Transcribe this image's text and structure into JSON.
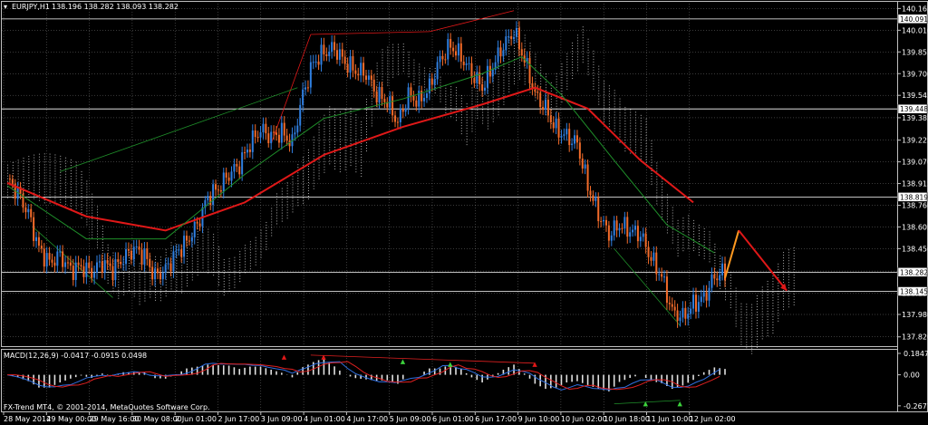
{
  "header": {
    "symbol": "EURJPY,H1",
    "ohlc": "138.196 138.282 138.093 138.282"
  },
  "colors": {
    "background": "#000000",
    "grid": "#c0c0c0",
    "bull": "#2f7fe0",
    "bear": "#f26b2a",
    "ma_red": "#e01818",
    "ma_green": "#1f8f2a",
    "cloud_white": "#d8d8d8",
    "cloud_orange": "#e8b090",
    "macd_blue": "#2f6fe0",
    "macd_red": "#e02020",
    "hist": "#e0e0e0"
  },
  "chart_data": {
    "type": "candlestick",
    "symbol": "EURJPY",
    "timeframe": "H1",
    "ylim": [
      137.76,
      140.2
    ],
    "y_ticks": [
      "140.165",
      "140.010",
      "139.855",
      "139.700",
      "139.545",
      "139.385",
      "139.225",
      "139.070",
      "138.915",
      "138.760",
      "138.605",
      "138.450",
      "138.290",
      "138.130",
      "137.980",
      "137.820"
    ],
    "x_ticks": [
      "28 May 2014",
      "29 May 00:00",
      "29 May 16:00",
      "30 May 08:00",
      "2 Jun 01:00",
      "2 Jun 17:00",
      "3 Jun 09:00",
      "4 Jun 01:00",
      "4 Jun 17:00",
      "5 Jun 09:00",
      "6 Jun 01:00",
      "6 Jun 17:00",
      "9 Jun 10:00",
      "10 Jun 02:00",
      "10 Jun 18:00",
      "11 Jun 10:00",
      "12 Jun 02:00"
    ],
    "price_boxes": [
      {
        "label": "140.091",
        "value": 140.091
      },
      {
        "label": "139.448",
        "value": 139.448
      },
      {
        "label": "138.819",
        "value": 138.819
      },
      {
        "label": "138.282",
        "value": 138.282
      },
      {
        "label": "138.145",
        "value": 138.145
      }
    ],
    "close_path": [
      [
        0,
        138.95
      ],
      [
        4,
        138.85
      ],
      [
        8,
        138.7
      ],
      [
        12,
        138.45
      ],
      [
        16,
        138.35
      ],
      [
        20,
        138.4
      ],
      [
        24,
        138.3
      ],
      [
        28,
        138.32
      ],
      [
        32,
        138.28
      ],
      [
        36,
        138.35
      ],
      [
        40,
        138.3
      ],
      [
        44,
        138.38
      ],
      [
        48,
        138.45
      ],
      [
        52,
        138.4
      ],
      [
        56,
        138.25
      ],
      [
        60,
        138.3
      ],
      [
        64,
        138.42
      ],
      [
        68,
        138.5
      ],
      [
        72,
        138.62
      ],
      [
        76,
        138.82
      ],
      [
        80,
        138.88
      ],
      [
        84,
        138.98
      ],
      [
        88,
        139.05
      ],
      [
        92,
        139.2
      ],
      [
        96,
        139.3
      ],
      [
        100,
        139.25
      ],
      [
        104,
        139.28
      ],
      [
        108,
        139.2
      ],
      [
        112,
        139.55
      ],
      [
        116,
        139.78
      ],
      [
        120,
        139.85
      ],
      [
        124,
        139.88
      ],
      [
        128,
        139.78
      ],
      [
        132,
        139.72
      ],
      [
        136,
        139.7
      ],
      [
        140,
        139.55
      ],
      [
        144,
        139.5
      ],
      [
        148,
        139.35
      ],
      [
        152,
        139.55
      ],
      [
        156,
        139.5
      ],
      [
        160,
        139.6
      ],
      [
        164,
        139.8
      ],
      [
        168,
        139.9
      ],
      [
        172,
        139.82
      ],
      [
        176,
        139.7
      ],
      [
        180,
        139.6
      ],
      [
        184,
        139.75
      ],
      [
        188,
        139.9
      ],
      [
        192,
        140.0
      ],
      [
        196,
        139.8
      ],
      [
        200,
        139.55
      ],
      [
        204,
        139.45
      ],
      [
        208,
        139.3
      ],
      [
        212,
        139.25
      ],
      [
        216,
        139.2
      ],
      [
        220,
        138.9
      ],
      [
        224,
        138.7
      ],
      [
        228,
        138.55
      ],
      [
        232,
        138.62
      ],
      [
        236,
        138.58
      ],
      [
        240,
        138.55
      ],
      [
        244,
        138.38
      ],
      [
        248,
        138.25
      ],
      [
        252,
        138.0
      ],
      [
        256,
        137.96
      ],
      [
        260,
        138.05
      ],
      [
        264,
        138.1
      ],
      [
        268,
        138.25
      ],
      [
        272,
        138.28
      ]
    ],
    "series": [
      {
        "name": "",
        "color": "#e01818",
        "values": [
          [
            0,
            138.92
          ],
          [
            30,
            138.68
          ],
          [
            60,
            138.58
          ],
          [
            90,
            138.78
          ],
          [
            120,
            139.12
          ],
          [
            150,
            139.32
          ],
          [
            180,
            139.48
          ],
          [
            200,
            139.6
          ],
          [
            220,
            139.45
          ],
          [
            240,
            139.08
          ],
          [
            260,
            138.78
          ]
        ]
      },
      {
        "name": "",
        "color": "#1f8f2a",
        "values": [
          [
            0,
            138.9
          ],
          [
            30,
            138.52
          ],
          [
            60,
            138.52
          ],
          [
            90,
            138.98
          ],
          [
            120,
            139.38
          ],
          [
            150,
            139.52
          ],
          [
            180,
            139.7
          ],
          [
            195,
            139.82
          ],
          [
            210,
            139.55
          ],
          [
            230,
            139.08
          ],
          [
            250,
            138.62
          ],
          [
            268,
            138.42
          ]
        ]
      }
    ],
    "forecast": [
      {
        "name": "",
        "color": "#ff9920",
        "values": [
          [
            272,
            138.24
          ],
          [
            276,
            138.58
          ]
        ]
      },
      {
        "name": "",
        "color": "#e01818",
        "values": [
          [
            276,
            138.58
          ],
          [
            290,
            138.15
          ]
        ]
      }
    ],
    "macd": {
      "label": "MACD(12,26,9) -0.0417 -0.0915 0.0498",
      "ylim": [
        -0.3,
        0.2
      ],
      "ticks": [
        "0.1847",
        "0.00",
        "-0.2677"
      ]
    }
  },
  "footer": {
    "copyright": "FX-Trend MT4, © 2001-2014, MetaQuotes Software Corp."
  }
}
